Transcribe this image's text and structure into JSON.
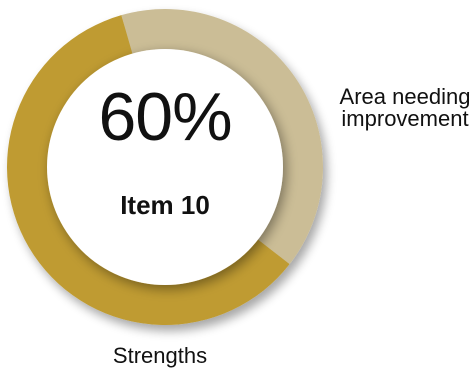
{
  "chart_data": {
    "type": "pie",
    "center_value": "60%",
    "center_label": "Item 10",
    "categories": [
      "Strengths",
      "Area needing improvement"
    ],
    "values": [
      60,
      40
    ],
    "colors": [
      "#bf9b30",
      "#cbbd96"
    ],
    "legend": [
      {
        "label": "Area needing improvement",
        "position": "right"
      },
      {
        "label": "Strengths",
        "position": "bottom"
      }
    ]
  }
}
